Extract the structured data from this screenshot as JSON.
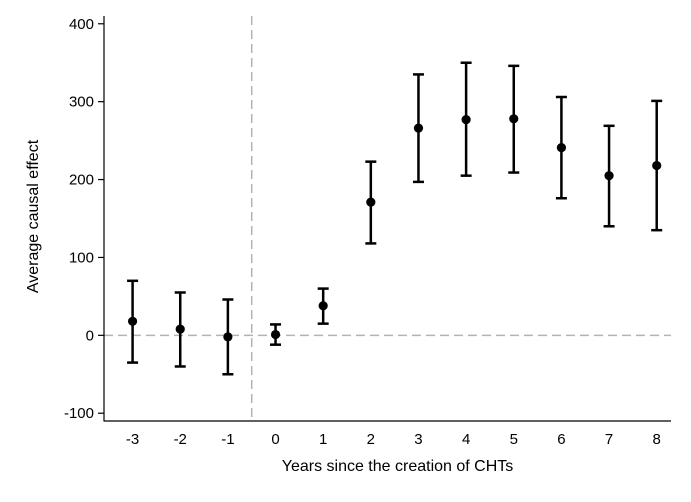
{
  "chart_data": {
    "type": "scatter",
    "title": "",
    "xlabel": "Years since the creation of CHTs",
    "ylabel": "Average causal effect",
    "x_ticks": [
      "-3",
      "-2",
      "-1",
      "0",
      "1",
      "2",
      "3",
      "4",
      "5",
      "6",
      "7",
      "8"
    ],
    "y_ticks": [
      "400",
      "300",
      "200",
      "100",
      "0",
      "-100"
    ],
    "ylim": [
      -110,
      410
    ],
    "xlim": [
      -3.6,
      8.3
    ],
    "grid": false,
    "legend": "none",
    "reference_lines": {
      "vertical_x": -0.5,
      "horizontal_y": 0
    },
    "colors": {
      "points": "#000000",
      "reference_lines": "#b3b3b3",
      "axes": "#000000"
    },
    "series": [
      {
        "x": [
          -3,
          -2,
          -1,
          0,
          1,
          2,
          3,
          4,
          5,
          6,
          7,
          8
        ],
        "estimate": [
          18,
          8,
          -2,
          1,
          38,
          171,
          266,
          277,
          278,
          241,
          205,
          218
        ],
        "ci_lower": [
          -35,
          -40,
          -50,
          -12,
          15,
          118,
          197,
          205,
          209,
          176,
          140,
          135
        ],
        "ci_upper": [
          70,
          55,
          46,
          14,
          60,
          223,
          335,
          350,
          346,
          306,
          269,
          301
        ]
      }
    ]
  }
}
